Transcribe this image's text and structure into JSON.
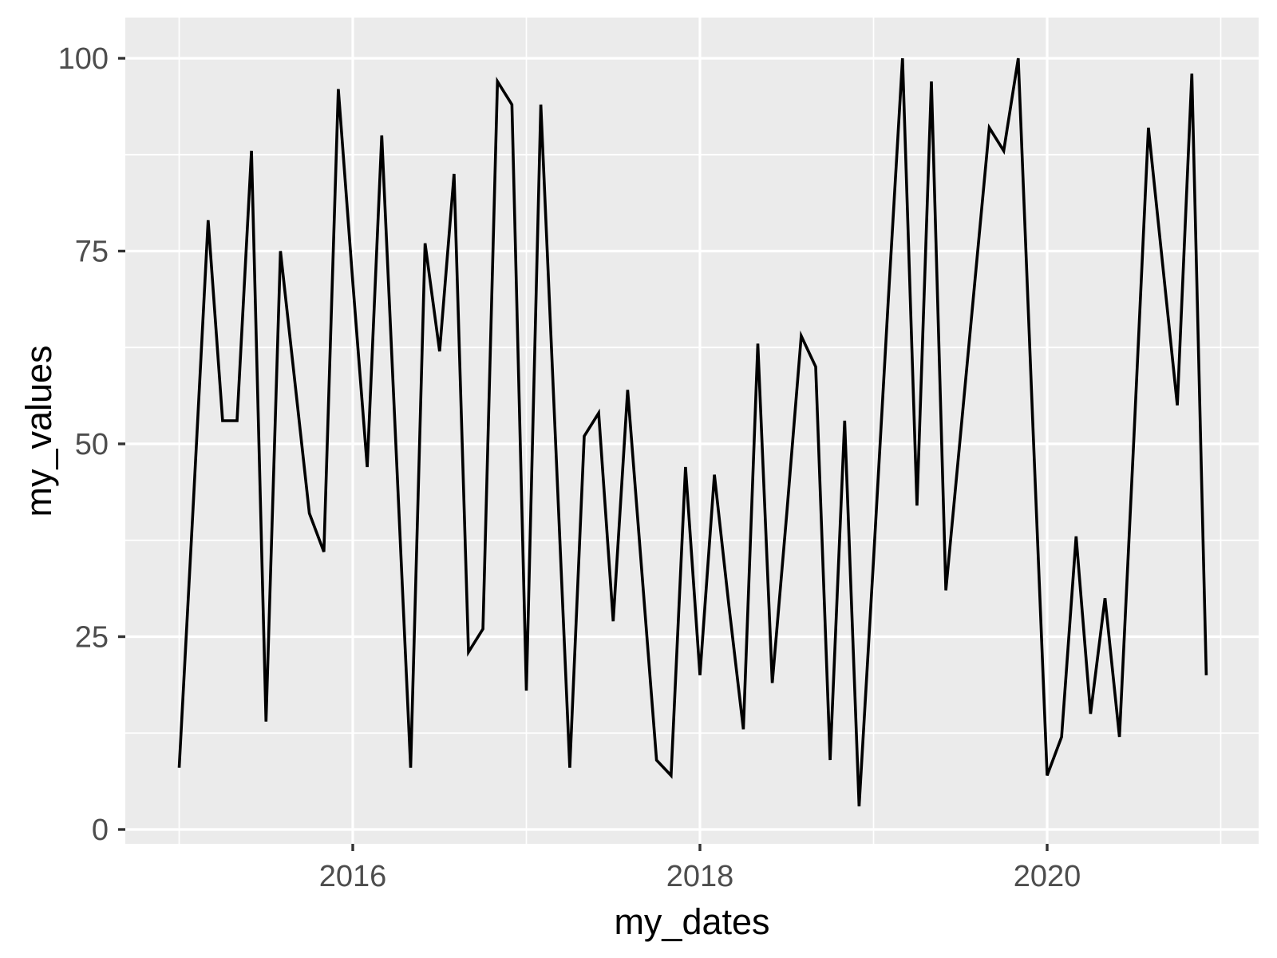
{
  "figure": {
    "background_color": "#FFFFFF",
    "panel_background_color": "#EBEBEB",
    "gridline_color": "#FFFFFF",
    "line_color": "#000000",
    "axis_text_color": "#4D4D4D",
    "axis_title_color": "#000000",
    "tick_mark_color": "#333333"
  },
  "chart_data": {
    "type": "line",
    "title": "",
    "xlabel": "my_dates",
    "ylabel": "my_values",
    "legend": "none",
    "grid": true,
    "x_tick_labels": [
      "2016",
      "2018",
      "2020"
    ],
    "x_major_years": [
      2016,
      2018,
      2020
    ],
    "x_minor_years": [
      2015,
      2017,
      2019,
      2021
    ],
    "y_tick_labels": [
      "0",
      "25",
      "50",
      "75",
      "100"
    ],
    "y_major_ticks": [
      0,
      25,
      50,
      75,
      100
    ],
    "y_minor_gridlines": [
      12.5,
      37.5,
      62.5,
      87.5
    ],
    "ylim": [
      -1.85,
      104.85
    ],
    "x": [
      "2015-01",
      "2015-02",
      "2015-03",
      "2015-04",
      "2015-05",
      "2015-06",
      "2015-07",
      "2015-08",
      "2015-09",
      "2015-10",
      "2015-11",
      "2015-12",
      "2016-01",
      "2016-02",
      "2016-03",
      "2016-04",
      "2016-05",
      "2016-06",
      "2016-07",
      "2016-08",
      "2016-09",
      "2016-10",
      "2016-11",
      "2016-12",
      "2017-01",
      "2017-02",
      "2017-03",
      "2017-04",
      "2017-05",
      "2017-06",
      "2017-07",
      "2017-08",
      "2017-09",
      "2017-10",
      "2017-11",
      "2017-12",
      "2018-01",
      "2018-02",
      "2018-03",
      "2018-04",
      "2018-05",
      "2018-06",
      "2018-07",
      "2018-08",
      "2018-09",
      "2018-10",
      "2018-11",
      "2018-12",
      "2019-01",
      "2019-02",
      "2019-03",
      "2019-04",
      "2019-05",
      "2019-06",
      "2019-07",
      "2019-08",
      "2019-09",
      "2019-10",
      "2019-11",
      "2019-12",
      "2020-01",
      "2020-02",
      "2020-03",
      "2020-04",
      "2020-05",
      "2020-06",
      "2020-07",
      "2020-08",
      "2020-09",
      "2020-10",
      "2020-11",
      "2020-12"
    ],
    "values": [
      8,
      43,
      79,
      53,
      53,
      88,
      14,
      75,
      58,
      41,
      36,
      96,
      71,
      47,
      90,
      49,
      8,
      76,
      62,
      85,
      23,
      26,
      97,
      94,
      18,
      94,
      51,
      8,
      51,
      54,
      27,
      57,
      33,
      9,
      7,
      47,
      20,
      46,
      29,
      13,
      63,
      19,
      41,
      64,
      60,
      9,
      53,
      3,
      35,
      68,
      100,
      42,
      97,
      31,
      51,
      71,
      91,
      88,
      100,
      53,
      7,
      12,
      38,
      15,
      30,
      12,
      51,
      91,
      73,
      55,
      98,
      20
    ]
  }
}
